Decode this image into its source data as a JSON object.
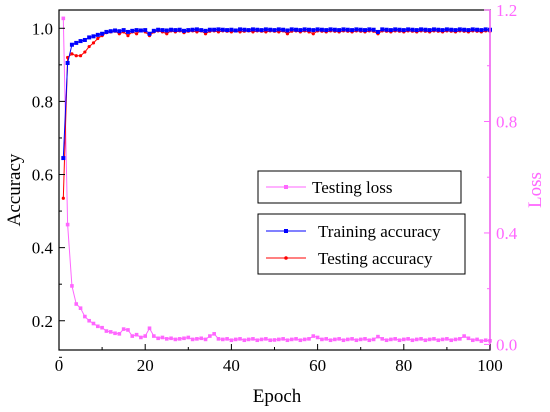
{
  "chart_data": {
    "type": "line",
    "xlabel": "Epoch",
    "ylabel_left": "Accuracy",
    "ylabel_right": "Loss",
    "xlim": [
      0,
      100
    ],
    "ylim_left": [
      0.12,
      1.05
    ],
    "ylim_right": [
      -0.02,
      1.2
    ],
    "x_ticks": [
      "0",
      "20",
      "40",
      "60",
      "80",
      "100"
    ],
    "y_left_ticks": [
      "0.2",
      "0.4",
      "0.6",
      "0.8",
      "1.0"
    ],
    "y_right_ticks": [
      "0.0",
      "0.4",
      "0.8",
      "1.2"
    ],
    "grid": false,
    "legends": [
      {
        "entries": [
          {
            "label": "Testing loss",
            "color": "#ff66ff"
          }
        ]
      },
      {
        "entries": [
          {
            "label": "Training accuracy",
            "color": "#0000ff"
          },
          {
            "label": "Testing accuracy",
            "color": "#ff0000"
          }
        ]
      }
    ],
    "series": [
      {
        "name": "Training accuracy",
        "axis": "left",
        "color": "#0000ff",
        "x": [
          1,
          2,
          3,
          4,
          5,
          6,
          7,
          8,
          9,
          10,
          11,
          12,
          13,
          14,
          15,
          16,
          17,
          18,
          19,
          20,
          21,
          22,
          23,
          24,
          25,
          26,
          27,
          28,
          29,
          30,
          31,
          32,
          33,
          34,
          35,
          36,
          37,
          38,
          39,
          40,
          41,
          42,
          43,
          44,
          45,
          46,
          47,
          48,
          49,
          50,
          51,
          52,
          53,
          54,
          55,
          56,
          57,
          58,
          59,
          60,
          61,
          62,
          63,
          64,
          65,
          66,
          67,
          68,
          69,
          70,
          71,
          72,
          73,
          74,
          75,
          76,
          77,
          78,
          79,
          80,
          81,
          82,
          83,
          84,
          85,
          86,
          87,
          88,
          89,
          90,
          91,
          92,
          93,
          94,
          95,
          96,
          97,
          98,
          99,
          100
        ],
        "values": [
          0.645,
          0.905,
          0.955,
          0.96,
          0.965,
          0.968,
          0.975,
          0.978,
          0.982,
          0.985,
          0.99,
          0.992,
          0.994,
          0.992,
          0.995,
          0.99,
          0.993,
          0.995,
          0.994,
          0.995,
          0.985,
          0.993,
          0.996,
          0.995,
          0.994,
          0.996,
          0.995,
          0.996,
          0.993,
          0.995,
          0.996,
          0.997,
          0.995,
          0.993,
          0.996,
          0.996,
          0.997,
          0.996,
          0.995,
          0.996,
          0.994,
          0.997,
          0.996,
          0.995,
          0.997,
          0.996,
          0.995,
          0.997,
          0.996,
          0.995,
          0.997,
          0.996,
          0.994,
          0.997,
          0.996,
          0.995,
          0.997,
          0.996,
          0.995,
          0.997,
          0.996,
          0.995,
          0.997,
          0.996,
          0.995,
          0.997,
          0.996,
          0.995,
          0.997,
          0.996,
          0.995,
          0.997,
          0.996,
          0.99,
          0.997,
          0.996,
          0.995,
          0.997,
          0.996,
          0.995,
          0.997,
          0.996,
          0.995,
          0.997,
          0.996,
          0.995,
          0.997,
          0.996,
          0.995,
          0.997,
          0.996,
          0.995,
          0.997,
          0.996,
          0.995,
          0.997,
          0.996,
          0.995,
          0.997,
          0.996
        ]
      },
      {
        "name": "Testing accuracy",
        "axis": "left",
        "color": "#ff0000",
        "x": [
          1,
          2,
          3,
          4,
          5,
          6,
          7,
          8,
          9,
          10,
          11,
          12,
          13,
          14,
          15,
          16,
          17,
          18,
          19,
          20,
          21,
          22,
          23,
          24,
          25,
          26,
          27,
          28,
          29,
          30,
          31,
          32,
          33,
          34,
          35,
          36,
          37,
          38,
          39,
          40,
          41,
          42,
          43,
          44,
          45,
          46,
          47,
          48,
          49,
          50,
          51,
          52,
          53,
          54,
          55,
          56,
          57,
          58,
          59,
          60,
          61,
          62,
          63,
          64,
          65,
          66,
          67,
          68,
          69,
          70,
          71,
          72,
          73,
          74,
          75,
          76,
          77,
          78,
          79,
          80,
          81,
          82,
          83,
          84,
          85,
          86,
          87,
          88,
          89,
          90,
          91,
          92,
          93,
          94,
          95,
          96,
          97,
          98,
          99,
          100
        ],
        "values": [
          0.535,
          0.92,
          0.93,
          0.925,
          0.925,
          0.935,
          0.95,
          0.96,
          0.972,
          0.98,
          0.988,
          0.99,
          0.992,
          0.985,
          0.99,
          0.98,
          0.99,
          0.985,
          0.995,
          0.99,
          0.98,
          0.99,
          0.993,
          0.99,
          0.985,
          0.993,
          0.99,
          0.993,
          0.988,
          0.992,
          0.993,
          0.99,
          0.993,
          0.985,
          0.992,
          0.993,
          0.99,
          0.993,
          0.992,
          0.99,
          0.993,
          0.99,
          0.992,
          0.993,
          0.99,
          0.993,
          0.992,
          0.99,
          0.993,
          0.992,
          0.99,
          0.993,
          0.985,
          0.992,
          0.993,
          0.99,
          0.993,
          0.99,
          0.985,
          0.993,
          0.992,
          0.99,
          0.993,
          0.992,
          0.99,
          0.993,
          0.992,
          0.99,
          0.993,
          0.992,
          0.99,
          0.993,
          0.992,
          0.985,
          0.993,
          0.992,
          0.99,
          0.993,
          0.992,
          0.99,
          0.993,
          0.992,
          0.99,
          0.993,
          0.992,
          0.99,
          0.993,
          0.992,
          0.99,
          0.993,
          0.992,
          0.99,
          0.993,
          0.992,
          0.99,
          0.993,
          0.992,
          0.99,
          0.993,
          0.992
        ]
      },
      {
        "name": "Testing loss",
        "axis": "right",
        "color": "#ff66ff",
        "x": [
          1,
          2,
          3,
          4,
          5,
          6,
          7,
          8,
          9,
          10,
          11,
          12,
          13,
          14,
          15,
          16,
          17,
          18,
          19,
          20,
          21,
          22,
          23,
          24,
          25,
          26,
          27,
          28,
          29,
          30,
          31,
          32,
          33,
          34,
          35,
          36,
          37,
          38,
          39,
          40,
          41,
          42,
          43,
          44,
          45,
          46,
          47,
          48,
          49,
          50,
          51,
          52,
          53,
          54,
          55,
          56,
          57,
          58,
          59,
          60,
          61,
          62,
          63,
          64,
          65,
          66,
          67,
          68,
          69,
          70,
          71,
          72,
          73,
          74,
          75,
          76,
          77,
          78,
          79,
          80,
          81,
          82,
          83,
          84,
          85,
          86,
          87,
          88,
          89,
          90,
          91,
          92,
          93,
          94,
          95,
          96,
          97,
          98,
          99,
          100
        ],
        "values": [
          1.17,
          0.43,
          0.21,
          0.145,
          0.13,
          0.1,
          0.085,
          0.075,
          0.065,
          0.06,
          0.048,
          0.045,
          0.04,
          0.038,
          0.055,
          0.052,
          0.03,
          0.035,
          0.025,
          0.03,
          0.058,
          0.03,
          0.022,
          0.025,
          0.02,
          0.022,
          0.018,
          0.02,
          0.022,
          0.025,
          0.018,
          0.02,
          0.022,
          0.018,
          0.03,
          0.038,
          0.02,
          0.018,
          0.02,
          0.015,
          0.018,
          0.02,
          0.015,
          0.018,
          0.02,
          0.015,
          0.018,
          0.02,
          0.015,
          0.016,
          0.018,
          0.02,
          0.015,
          0.018,
          0.02,
          0.015,
          0.018,
          0.02,
          0.03,
          0.025,
          0.018,
          0.02,
          0.015,
          0.018,
          0.02,
          0.015,
          0.018,
          0.02,
          0.015,
          0.018,
          0.02,
          0.015,
          0.018,
          0.028,
          0.02,
          0.015,
          0.018,
          0.02,
          0.015,
          0.018,
          0.02,
          0.015,
          0.018,
          0.02,
          0.015,
          0.018,
          0.02,
          0.015,
          0.018,
          0.02,
          0.015,
          0.018,
          0.02,
          0.03,
          0.022,
          0.015,
          0.018,
          0.012,
          0.015,
          0.013
        ]
      }
    ]
  }
}
